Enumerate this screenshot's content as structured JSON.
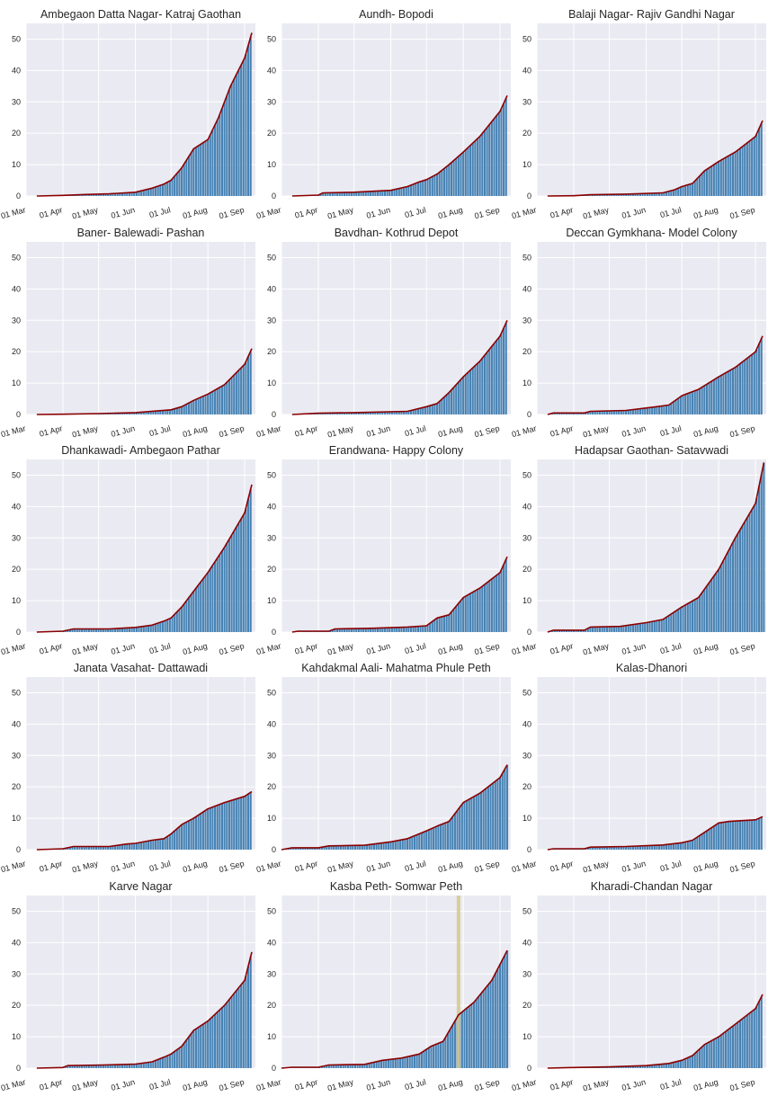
{
  "layout": {
    "rows": 5,
    "cols": 3
  },
  "colors": {
    "axes_bg": "#EAEAF2",
    "grid": "#FFFFFF",
    "bar": "#4682B4",
    "line": "#8B0000",
    "highlight": "#D4C98A",
    "text": "#262626"
  },
  "chart_data": [
    {
      "title": "Ambegaon Datta Nagar- Katraj Gaothan",
      "type": "bar",
      "ylim": [
        0,
        55
      ],
      "xlim": [
        "2020-03-01",
        "2020-09-10"
      ],
      "yticks": [
        0,
        10,
        20,
        30,
        40,
        50
      ],
      "xticks": [
        "01 Mar",
        "01 Apr",
        "01 May",
        "01 Jun",
        "01 Jul",
        "01 Aug",
        "01 Sep"
      ],
      "series": [
        {
          "x": [
            "2020-03-10",
            "2020-04-01",
            "2020-04-20",
            "2020-05-10",
            "2020-06-01",
            "2020-06-15",
            "2020-06-25",
            "2020-07-01",
            "2020-07-10",
            "2020-07-20",
            "2020-08-01",
            "2020-08-10",
            "2020-08-20",
            "2020-09-01",
            "2020-09-07"
          ],
          "y": [
            0,
            0.2,
            0.5,
            0.7,
            1.2,
            2.5,
            3.8,
            5,
            9,
            15,
            18,
            25,
            35,
            44,
            52
          ]
        }
      ]
    },
    {
      "title": "Aundh- Bopodi",
      "type": "bar",
      "ylim": [
        0,
        55
      ],
      "xlim": [
        "2020-03-01",
        "2020-09-10"
      ],
      "yticks": [
        0,
        10,
        20,
        30,
        40,
        50
      ],
      "xticks": [
        "01 Mar",
        "01 Apr",
        "01 May",
        "01 Jun",
        "01 Jul",
        "01 Aug",
        "01 Sep"
      ],
      "series": [
        {
          "x": [
            "2020-03-10",
            "2020-04-01",
            "2020-04-05",
            "2020-05-01",
            "2020-06-01",
            "2020-06-15",
            "2020-06-25",
            "2020-07-01",
            "2020-07-10",
            "2020-07-20",
            "2020-08-01",
            "2020-08-15",
            "2020-09-01",
            "2020-09-07"
          ],
          "y": [
            0,
            0.3,
            1,
            1.2,
            1.8,
            3,
            4.5,
            5.2,
            7,
            10,
            14,
            19,
            27,
            32
          ]
        }
      ]
    },
    {
      "title": "Balaji Nagar- Rajiv Gandhi Nagar",
      "type": "bar",
      "ylim": [
        0,
        55
      ],
      "xlim": [
        "2020-03-01",
        "2020-09-10"
      ],
      "yticks": [
        0,
        10,
        20,
        30,
        40,
        50
      ],
      "xticks": [
        "01 Mar",
        "01 Apr",
        "01 May",
        "01 Jun",
        "01 Jul",
        "01 Aug",
        "01 Sep"
      ],
      "series": [
        {
          "x": [
            "2020-03-10",
            "2020-04-01",
            "2020-04-15",
            "2020-05-15",
            "2020-06-15",
            "2020-06-25",
            "2020-07-01",
            "2020-07-10",
            "2020-07-20",
            "2020-08-01",
            "2020-08-15",
            "2020-09-01",
            "2020-09-07"
          ],
          "y": [
            0,
            0.1,
            0.4,
            0.6,
            1,
            2,
            3,
            4,
            8,
            11,
            14,
            19,
            24
          ]
        }
      ]
    },
    {
      "title": "Baner- Balewadi- Pashan",
      "type": "bar",
      "ylim": [
        0,
        55
      ],
      "xlim": [
        "2020-03-01",
        "2020-09-10"
      ],
      "yticks": [
        0,
        10,
        20,
        30,
        40,
        50
      ],
      "xticks": [
        "01 Mar",
        "01 Apr",
        "01 May",
        "01 Jun",
        "01 Jul",
        "01 Aug",
        "01 Sep"
      ],
      "series": [
        {
          "x": [
            "2020-03-10",
            "2020-04-01",
            "2020-05-01",
            "2020-06-01",
            "2020-07-01",
            "2020-07-10",
            "2020-07-20",
            "2020-08-01",
            "2020-08-15",
            "2020-09-01",
            "2020-09-07"
          ],
          "y": [
            0,
            0.1,
            0.3,
            0.6,
            1.5,
            2.5,
            4.5,
            6.5,
            9.5,
            16,
            21
          ]
        }
      ]
    },
    {
      "title": "Bavdhan- Kothrud Depot",
      "type": "bar",
      "ylim": [
        0,
        55
      ],
      "xlim": [
        "2020-03-01",
        "2020-09-10"
      ],
      "yticks": [
        0,
        10,
        20,
        30,
        40,
        50
      ],
      "xticks": [
        "01 Mar",
        "01 Apr",
        "01 May",
        "01 Jun",
        "01 Jul",
        "01 Aug",
        "01 Sep"
      ],
      "series": [
        {
          "x": [
            "2020-03-10",
            "2020-04-01",
            "2020-05-01",
            "2020-06-15",
            "2020-07-01",
            "2020-07-10",
            "2020-07-20",
            "2020-08-01",
            "2020-08-15",
            "2020-09-01",
            "2020-09-07"
          ],
          "y": [
            0,
            0.4,
            0.6,
            1,
            2.5,
            3.5,
            7,
            12,
            17,
            25,
            30
          ]
        }
      ]
    },
    {
      "title": "Deccan Gymkhana- Model Colony",
      "type": "bar",
      "ylim": [
        0,
        55
      ],
      "xlim": [
        "2020-03-01",
        "2020-09-10"
      ],
      "yticks": [
        0,
        10,
        20,
        30,
        40,
        50
      ],
      "xticks": [
        "01 Mar",
        "01 Apr",
        "01 May",
        "01 Jun",
        "01 Jul",
        "01 Aug",
        "01 Sep"
      ],
      "series": [
        {
          "x": [
            "2020-03-10",
            "2020-03-15",
            "2020-04-10",
            "2020-04-15",
            "2020-05-15",
            "2020-06-10",
            "2020-06-20",
            "2020-07-01",
            "2020-07-15",
            "2020-08-01",
            "2020-08-15",
            "2020-09-01",
            "2020-09-07"
          ],
          "y": [
            0,
            0.5,
            0.5,
            1,
            1.3,
            2.5,
            3,
            6,
            8,
            12,
            15,
            20,
            25
          ]
        }
      ]
    },
    {
      "title": "Dhankawadi- Ambegaon Pathar",
      "type": "bar",
      "ylim": [
        0,
        55
      ],
      "xlim": [
        "2020-03-01",
        "2020-09-10"
      ],
      "yticks": [
        0,
        10,
        20,
        30,
        40,
        50
      ],
      "xticks": [
        "01 Mar",
        "01 Apr",
        "01 May",
        "01 Jun",
        "01 Jul",
        "01 Aug",
        "01 Sep"
      ],
      "series": [
        {
          "x": [
            "2020-03-10",
            "2020-04-01",
            "2020-04-10",
            "2020-05-10",
            "2020-06-01",
            "2020-06-15",
            "2020-06-25",
            "2020-07-01",
            "2020-07-10",
            "2020-07-20",
            "2020-08-01",
            "2020-08-15",
            "2020-09-01",
            "2020-09-07"
          ],
          "y": [
            0,
            0.3,
            1,
            1,
            1.5,
            2.2,
            3.5,
            4.5,
            8,
            13,
            19,
            27,
            38,
            47
          ]
        }
      ]
    },
    {
      "title": "Erandwana- Happy Colony",
      "type": "bar",
      "ylim": [
        0,
        55
      ],
      "xlim": [
        "2020-03-01",
        "2020-09-10"
      ],
      "yticks": [
        0,
        10,
        20,
        30,
        40,
        50
      ],
      "xticks": [
        "01 Mar",
        "01 Apr",
        "01 May",
        "01 Jun",
        "01 Jul",
        "01 Aug",
        "01 Sep"
      ],
      "series": [
        {
          "x": [
            "2020-03-10",
            "2020-03-15",
            "2020-04-10",
            "2020-04-15",
            "2020-05-15",
            "2020-06-15",
            "2020-07-01",
            "2020-07-10",
            "2020-07-20",
            "2020-08-01",
            "2020-08-15",
            "2020-09-01",
            "2020-09-07"
          ],
          "y": [
            0,
            0.3,
            0.3,
            1,
            1.2,
            1.6,
            2,
            4.5,
            5.5,
            11,
            14,
            19,
            24
          ]
        }
      ]
    },
    {
      "title": "Hadapsar Gaothan- Satavwadi",
      "type": "bar",
      "ylim": [
        0,
        55
      ],
      "xlim": [
        "2020-03-01",
        "2020-09-10"
      ],
      "yticks": [
        0,
        10,
        20,
        30,
        40,
        50
      ],
      "xticks": [
        "01 Mar",
        "01 Apr",
        "01 May",
        "01 Jun",
        "01 Jul",
        "01 Aug",
        "01 Sep"
      ],
      "series": [
        {
          "x": [
            "2020-03-10",
            "2020-03-15",
            "2020-04-10",
            "2020-04-15",
            "2020-05-10",
            "2020-06-01",
            "2020-06-15",
            "2020-07-01",
            "2020-07-15",
            "2020-08-01",
            "2020-08-15",
            "2020-09-01",
            "2020-09-08"
          ],
          "y": [
            0,
            0.6,
            0.6,
            1.6,
            1.8,
            3,
            4,
            8,
            11,
            20,
            30,
            41,
            54
          ]
        }
      ]
    },
    {
      "title": "Janata Vasahat- Dattawadi",
      "type": "bar",
      "ylim": [
        0,
        55
      ],
      "xlim": [
        "2020-03-01",
        "2020-09-10"
      ],
      "yticks": [
        0,
        10,
        20,
        30,
        40,
        50
      ],
      "xticks": [
        "01 Mar",
        "01 Apr",
        "01 May",
        "01 Jun",
        "01 Jul",
        "01 Aug",
        "01 Sep"
      ],
      "series": [
        {
          "x": [
            "2020-03-10",
            "2020-04-01",
            "2020-04-10",
            "2020-05-10",
            "2020-05-25",
            "2020-06-01",
            "2020-06-15",
            "2020-06-25",
            "2020-07-01",
            "2020-07-10",
            "2020-07-20",
            "2020-08-01",
            "2020-08-15",
            "2020-09-01",
            "2020-09-07"
          ],
          "y": [
            0,
            0.3,
            1,
            1,
            1.8,
            2,
            3,
            3.5,
            5,
            8,
            10,
            13,
            15,
            17,
            18.5
          ]
        }
      ]
    },
    {
      "title": "Kahdakmal Aali- Mahatma Phule Peth",
      "type": "bar",
      "ylim": [
        0,
        55
      ],
      "xlim": [
        "2020-03-01",
        "2020-09-10"
      ],
      "yticks": [
        0,
        10,
        20,
        30,
        40,
        50
      ],
      "xticks": [
        "01 Mar",
        "01 Apr",
        "01 May",
        "01 Jun",
        "01 Jul",
        "01 Aug",
        "01 Sep"
      ],
      "series": [
        {
          "x": [
            "2020-03-01",
            "2020-03-10",
            "2020-04-01",
            "2020-04-10",
            "2020-05-10",
            "2020-06-01",
            "2020-06-15",
            "2020-07-01",
            "2020-07-10",
            "2020-07-20",
            "2020-08-01",
            "2020-08-15",
            "2020-09-01",
            "2020-09-07"
          ],
          "y": [
            0,
            0.6,
            0.6,
            1.2,
            1.4,
            2.5,
            3.5,
            6,
            7.5,
            9,
            15,
            18,
            23,
            27
          ]
        }
      ]
    },
    {
      "title": "Kalas-Dhanori",
      "type": "bar",
      "ylim": [
        0,
        55
      ],
      "xlim": [
        "2020-03-01",
        "2020-09-10"
      ],
      "yticks": [
        0,
        10,
        20,
        30,
        40,
        50
      ],
      "xticks": [
        "01 Mar",
        "01 Apr",
        "01 May",
        "01 Jun",
        "01 Jul",
        "01 Aug",
        "01 Sep"
      ],
      "series": [
        {
          "x": [
            "2020-03-10",
            "2020-03-15",
            "2020-04-10",
            "2020-04-15",
            "2020-05-15",
            "2020-06-15",
            "2020-07-01",
            "2020-07-10",
            "2020-07-20",
            "2020-08-01",
            "2020-08-10",
            "2020-09-01",
            "2020-09-07"
          ],
          "y": [
            0,
            0.3,
            0.3,
            0.8,
            1,
            1.5,
            2.2,
            3,
            5.5,
            8.5,
            9,
            9.5,
            10.5
          ]
        }
      ]
    },
    {
      "title": "Karve Nagar",
      "type": "bar",
      "ylim": [
        0,
        55
      ],
      "xlim": [
        "2020-03-01",
        "2020-09-10"
      ],
      "yticks": [
        0,
        10,
        20,
        30,
        40,
        50
      ],
      "xticks": [
        "01 Mar",
        "01 Apr",
        "01 May",
        "01 Jun",
        "01 Jul",
        "01 Aug",
        "01 Sep"
      ],
      "series": [
        {
          "x": [
            "2020-03-10",
            "2020-04-01",
            "2020-04-05",
            "2020-05-05",
            "2020-06-01",
            "2020-06-15",
            "2020-06-25",
            "2020-07-01",
            "2020-07-10",
            "2020-07-20",
            "2020-08-01",
            "2020-08-15",
            "2020-09-01",
            "2020-09-07"
          ],
          "y": [
            0,
            0.2,
            0.8,
            1,
            1.3,
            2,
            3.5,
            4.5,
            7,
            12,
            15,
            20,
            28,
            37
          ]
        }
      ]
    },
    {
      "title": "Kasba Peth- Somwar Peth",
      "type": "bar",
      "ylim": [
        0,
        55
      ],
      "xlim": [
        "2020-03-01",
        "2020-09-10"
      ],
      "yticks": [
        0,
        10,
        20,
        30,
        40,
        50
      ],
      "xticks": [
        "01 Mar",
        "01 Apr",
        "01 May",
        "01 Jun",
        "01 Jul",
        "01 Aug",
        "01 Sep"
      ],
      "highlight_x": "2020-07-28",
      "series": [
        {
          "x": [
            "2020-03-01",
            "2020-03-10",
            "2020-04-01",
            "2020-04-10",
            "2020-05-10",
            "2020-05-25",
            "2020-06-10",
            "2020-06-25",
            "2020-07-05",
            "2020-07-15",
            "2020-07-28",
            "2020-08-10",
            "2020-08-25",
            "2020-09-07"
          ],
          "y": [
            0,
            0.3,
            0.3,
            1,
            1.2,
            2.5,
            3.2,
            4.5,
            7,
            8.5,
            17,
            21,
            28,
            37.5
          ]
        }
      ]
    },
    {
      "title": "Kharadi-Chandan Nagar",
      "type": "bar",
      "ylim": [
        0,
        55
      ],
      "xlim": [
        "2020-03-01",
        "2020-09-10"
      ],
      "yticks": [
        0,
        10,
        20,
        30,
        40,
        50
      ],
      "xticks": [
        "01 Mar",
        "01 Apr",
        "01 May",
        "01 Jun",
        "01 Jul",
        "01 Aug",
        "01 Sep"
      ],
      "series": [
        {
          "x": [
            "2020-03-10",
            "2020-04-01",
            "2020-05-01",
            "2020-06-01",
            "2020-06-20",
            "2020-07-01",
            "2020-07-10",
            "2020-07-20",
            "2020-08-01",
            "2020-08-15",
            "2020-09-01",
            "2020-09-07"
          ],
          "y": [
            0,
            0.2,
            0.4,
            0.8,
            1.5,
            2.5,
            4,
            7.5,
            10,
            14,
            19,
            23.5
          ]
        }
      ]
    }
  ]
}
